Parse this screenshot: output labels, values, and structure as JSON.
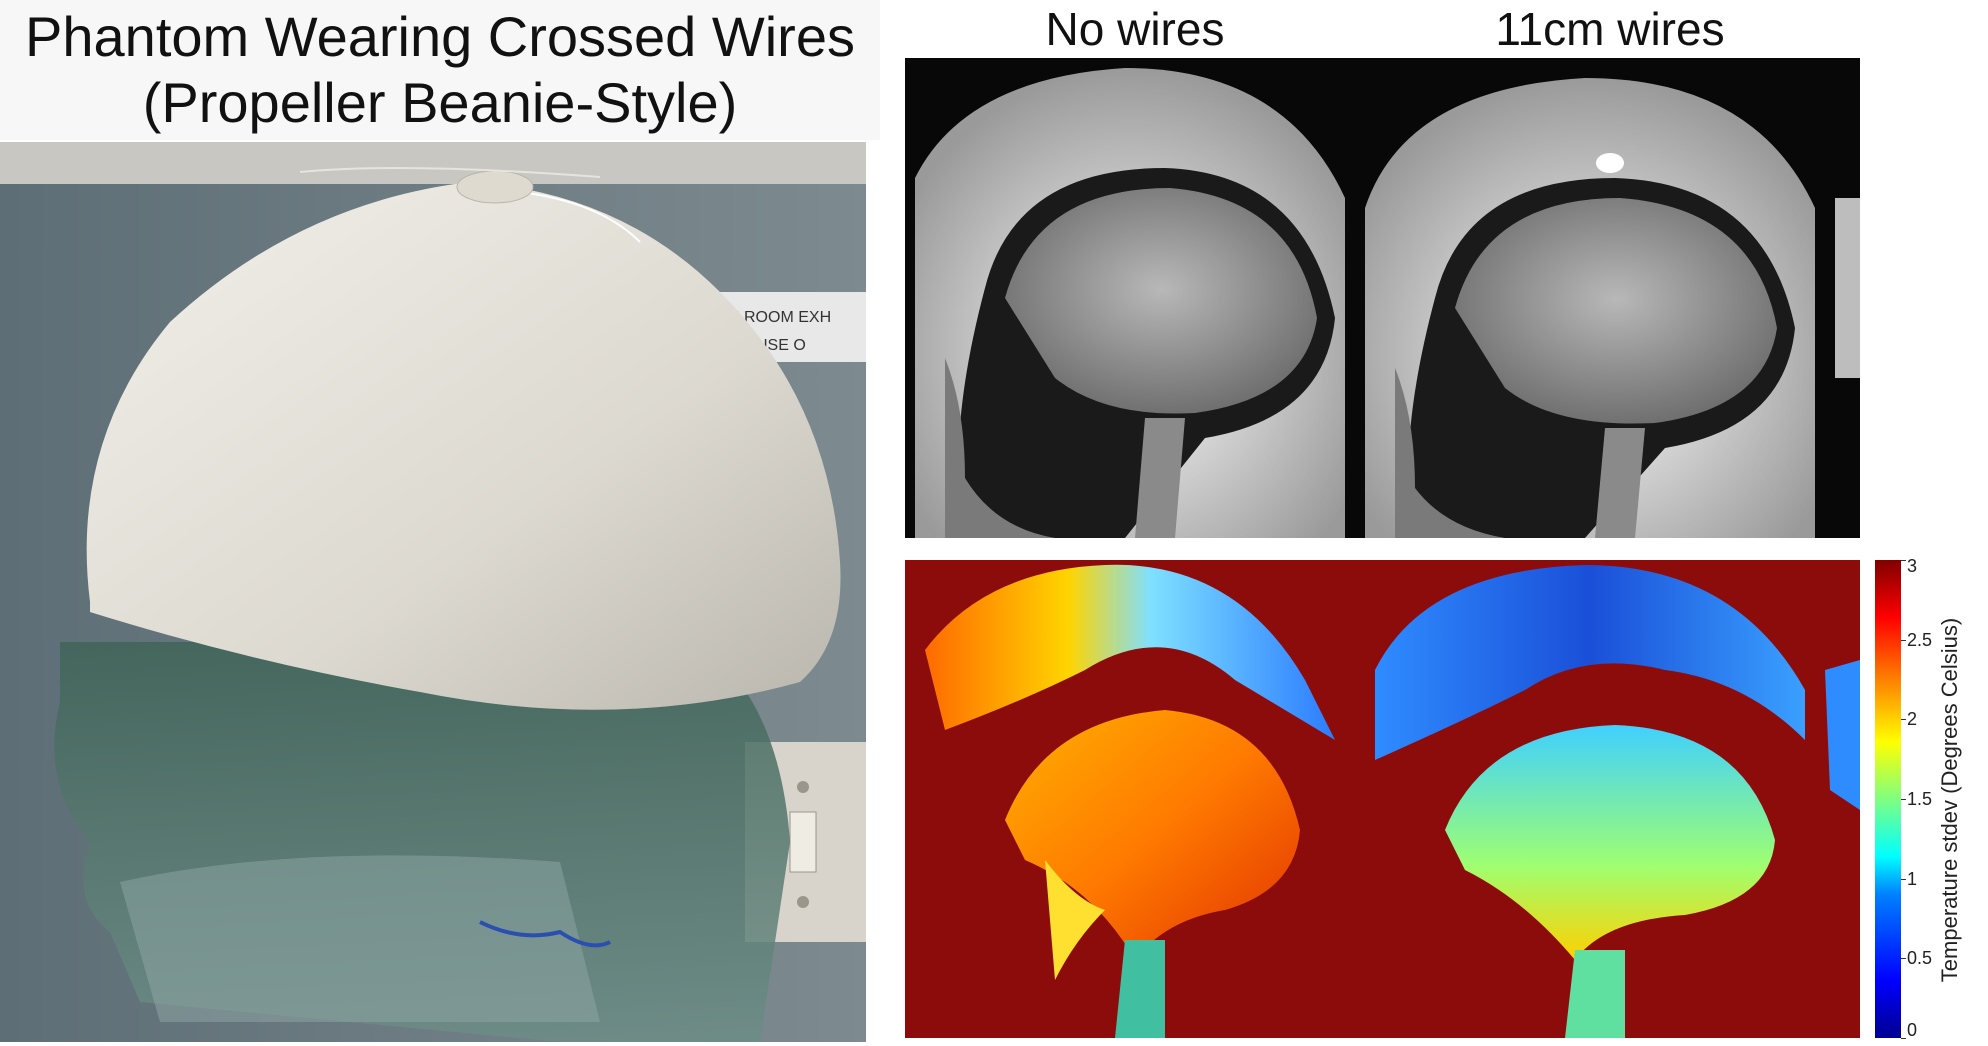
{
  "photo_panel": {
    "title_line1": "Phantom Wearing Crossed Wires",
    "title_line2": "(Propeller Beanie-Style)",
    "sign_line1": "N ROOM EXH",
    "sign_line2": "R USE O"
  },
  "mri_panel": {
    "left_title": "No wires",
    "right_title": "11cm wires"
  },
  "colorbar": {
    "label": "Temperature stdev (Degrees Celsius)",
    "ticks": [
      "3",
      "2.5",
      "2",
      "1.5",
      "1",
      "0.5",
      "0"
    ],
    "range": [
      0,
      3
    ],
    "colormap": "jet"
  },
  "colors": {
    "background": "#ffffff",
    "map_background": "#8c0c0c",
    "mri_background": "#080808"
  }
}
